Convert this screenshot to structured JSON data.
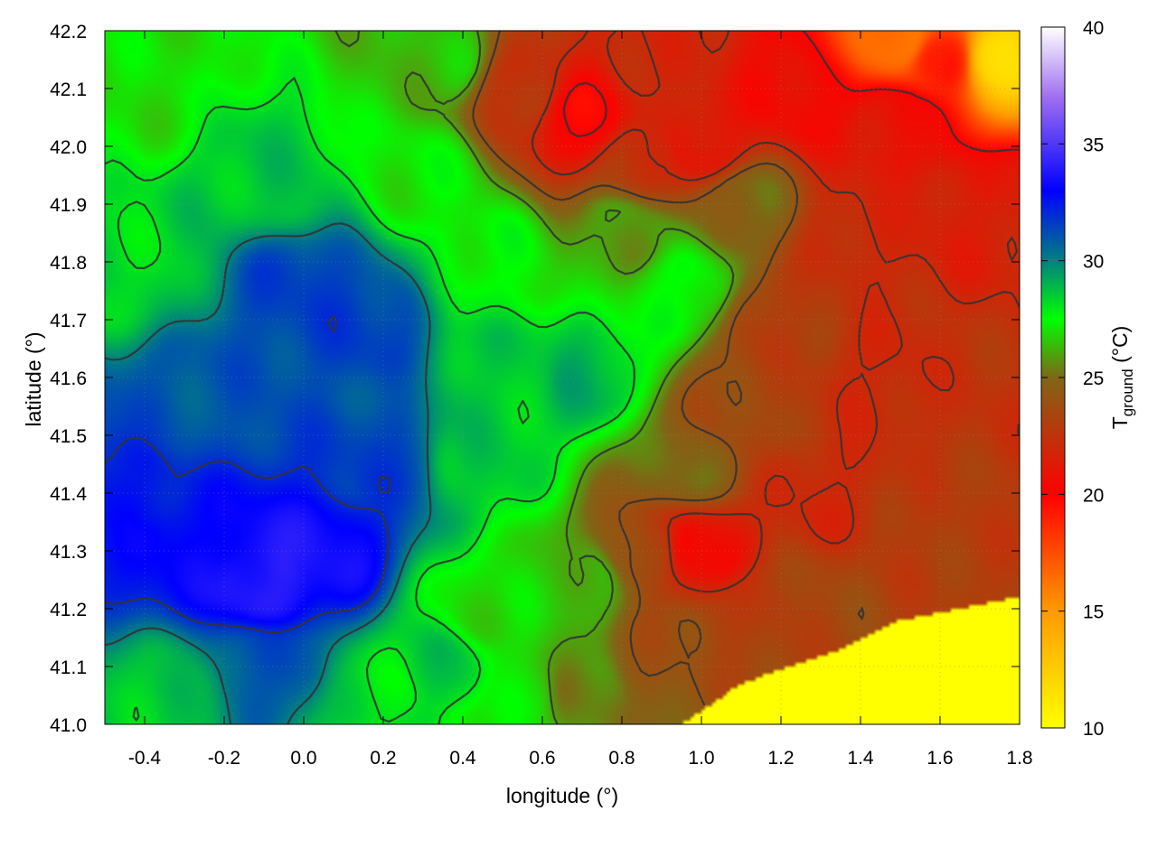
{
  "chart_data": {
    "type": "heatmap",
    "variable": "ground temperature",
    "xlabel": "longitude (°)",
    "ylabel": "latitude (°)",
    "colorbar_label": {
      "main": "T",
      "subscript": "ground",
      "unit": " (°C)"
    },
    "xlim": [
      -0.5,
      1.8
    ],
    "ylim": [
      41.0,
      42.2
    ],
    "clim": [
      10,
      40
    ],
    "x_ticks": [
      -0.4,
      -0.2,
      0.0,
      0.2,
      0.4,
      0.6,
      0.8,
      1.0,
      1.2,
      1.4,
      1.6,
      1.8
    ],
    "x_tick_labels": [
      "-0.4",
      "-0.2",
      "0.0",
      "0.2",
      "0.4",
      "0.6",
      "0.8",
      "1.0",
      "1.2",
      "1.4",
      "1.6",
      "1.8"
    ],
    "y_ticks": [
      41.0,
      41.1,
      41.2,
      41.3,
      41.4,
      41.5,
      41.6,
      41.7,
      41.8,
      41.9,
      42.0,
      42.1,
      42.2
    ],
    "y_tick_labels": [
      "41.0",
      "41.1",
      "41.2",
      "41.3",
      "41.4",
      "41.5",
      "41.6",
      "41.7",
      "41.8",
      "41.9",
      "42.0",
      "42.1",
      "42.2"
    ],
    "colorbar_ticks": [
      10,
      15,
      20,
      25,
      30,
      35,
      40
    ],
    "colorbar_tick_labels": [
      "10",
      "15",
      "20",
      "25",
      "30",
      "35",
      "40"
    ],
    "colormap": [
      {
        "value": 10,
        "color": "#ffff00"
      },
      {
        "value": 15,
        "color": "#ff9900"
      },
      {
        "value": 20,
        "color": "#ff0000"
      },
      {
        "value": 25,
        "color": "#7f6616"
      },
      {
        "value": 27.5,
        "color": "#00ff00"
      },
      {
        "value": 30,
        "color": "#008080"
      },
      {
        "value": 33,
        "color": "#0000ff"
      },
      {
        "value": 37,
        "color": "#9f6ff0"
      },
      {
        "value": 40,
        "color": "#ffffff"
      }
    ],
    "grid": true,
    "contours": true,
    "contour_color": "#333333",
    "sea_value": 10,
    "sea_coast": [
      [
        0.95,
        41.0
      ],
      [
        1.1,
        41.07
      ],
      [
        1.22,
        41.1
      ],
      [
        1.35,
        41.13
      ],
      [
        1.5,
        41.18
      ],
      [
        1.65,
        41.2
      ],
      [
        1.8,
        41.22
      ]
    ],
    "field_samples": [
      {
        "x": -0.4,
        "y": 42.1,
        "t": 27
      },
      {
        "x": -0.45,
        "y": 41.8,
        "t": 28.2
      },
      {
        "x": -0.1,
        "y": 41.95,
        "t": 28.6
      },
      {
        "x": 0.0,
        "y": 41.75,
        "t": 31.5
      },
      {
        "x": 0.15,
        "y": 41.7,
        "t": 31.5
      },
      {
        "x": -0.3,
        "y": 41.55,
        "t": 31
      },
      {
        "x": -0.45,
        "y": 41.4,
        "t": 32.5
      },
      {
        "x": -0.3,
        "y": 41.3,
        "t": 33
      },
      {
        "x": -0.1,
        "y": 41.25,
        "t": 34
      },
      {
        "x": 0.05,
        "y": 41.3,
        "t": 33.5
      },
      {
        "x": 0.2,
        "y": 41.45,
        "t": 31.5
      },
      {
        "x": -0.1,
        "y": 41.1,
        "t": 31
      },
      {
        "x": -0.35,
        "y": 41.05,
        "t": 28.5
      },
      {
        "x": 0.2,
        "y": 41.05,
        "t": 28
      },
      {
        "x": 0.35,
        "y": 41.1,
        "t": 28.5
      },
      {
        "x": 0.45,
        "y": 41.2,
        "t": 27
      },
      {
        "x": 0.55,
        "y": 41.05,
        "t": 27
      },
      {
        "x": 0.7,
        "y": 41.05,
        "t": 25.5
      },
      {
        "x": 0.7,
        "y": 41.25,
        "t": 26.5
      },
      {
        "x": 0.45,
        "y": 41.45,
        "t": 28.5
      },
      {
        "x": 0.55,
        "y": 41.6,
        "t": 28.5
      },
      {
        "x": 0.7,
        "y": 41.6,
        "t": 29
      },
      {
        "x": 0.45,
        "y": 41.8,
        "t": 27.5
      },
      {
        "x": 0.3,
        "y": 41.95,
        "t": 27.2
      },
      {
        "x": 0.35,
        "y": 42.15,
        "t": 26.5
      },
      {
        "x": 0.55,
        "y": 42.1,
        "t": 22.5
      },
      {
        "x": 0.7,
        "y": 42.05,
        "t": 20
      },
      {
        "x": 0.9,
        "y": 42.15,
        "t": 22
      },
      {
        "x": 1.0,
        "y": 42.0,
        "t": 21
      },
      {
        "x": 0.8,
        "y": 41.85,
        "t": 26
      },
      {
        "x": 0.95,
        "y": 41.75,
        "t": 27.5
      },
      {
        "x": 1.1,
        "y": 41.9,
        "t": 25
      },
      {
        "x": 1.2,
        "y": 41.7,
        "t": 23
      },
      {
        "x": 1.1,
        "y": 41.55,
        "t": 23.5
      },
      {
        "x": 0.95,
        "y": 41.45,
        "t": 25
      },
      {
        "x": 0.85,
        "y": 41.3,
        "t": 23.5
      },
      {
        "x": 1.0,
        "y": 41.3,
        "t": 20.5
      },
      {
        "x": 0.9,
        "y": 41.12,
        "t": 24
      },
      {
        "x": 1.15,
        "y": 41.2,
        "t": 23
      },
      {
        "x": 1.3,
        "y": 41.4,
        "t": 22
      },
      {
        "x": 1.45,
        "y": 41.6,
        "t": 22
      },
      {
        "x": 1.4,
        "y": 41.85,
        "t": 22
      },
      {
        "x": 1.5,
        "y": 42.05,
        "t": 21
      },
      {
        "x": 1.6,
        "y": 42.15,
        "t": 19
      },
      {
        "x": 1.5,
        "y": 42.18,
        "t": 16
      },
      {
        "x": 1.75,
        "y": 42.15,
        "t": 12
      },
      {
        "x": 1.7,
        "y": 41.9,
        "t": 21.5
      },
      {
        "x": 1.7,
        "y": 41.6,
        "t": 22.5
      },
      {
        "x": 1.6,
        "y": 41.35,
        "t": 23
      },
      {
        "x": 1.3,
        "y": 41.2,
        "t": 23.5
      },
      {
        "x": 1.25,
        "y": 42.1,
        "t": 20.5
      },
      {
        "x": 0.85,
        "y": 41.98,
        "t": 22.5
      }
    ]
  }
}
